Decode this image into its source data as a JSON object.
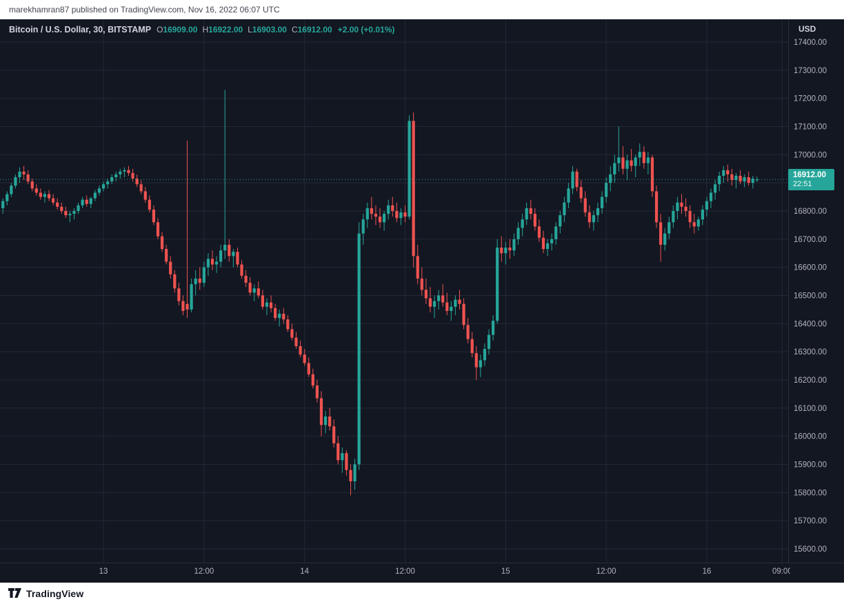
{
  "top_bar": {
    "text": "marekhamran87 published on TradingView.com, Nov 16, 2022 06:07 UTC"
  },
  "legend": {
    "title": "Bitcoin / U.S. Dollar, 30, BITSTAMP",
    "symbol": "Bitcoin / U.S. Dollar",
    "interval": "30",
    "exchange": "BITSTAMP",
    "ohlc": [
      {
        "label": "O",
        "value": "16909.00"
      },
      {
        "label": "H",
        "value": "16922.00"
      },
      {
        "label": "L",
        "value": "16903.00"
      },
      {
        "label": "C",
        "value": "16912.00"
      }
    ],
    "change": "+2.00 (+0.01%)"
  },
  "price_axis": {
    "currency": "USD",
    "ticks": [
      "17400.00",
      "17300.00",
      "17200.00",
      "17100.00",
      "17000.00",
      "16900.00",
      "16800.00",
      "16700.00",
      "16600.00",
      "16500.00",
      "16400.00",
      "16300.00",
      "16200.00",
      "16100.00",
      "16000.00",
      "15900.00",
      "15800.00",
      "15700.00",
      "15600.00"
    ],
    "last_price": {
      "value": "16912.00",
      "countdown": "22:51"
    }
  },
  "time_axis": {
    "labels": [
      {
        "text": "13",
        "index": 24
      },
      {
        "text": "12:00",
        "index": 48
      },
      {
        "text": "14",
        "index": 72
      },
      {
        "text": "12:00",
        "index": 96
      },
      {
        "text": "15",
        "index": 120
      },
      {
        "text": "12:00",
        "index": 144
      },
      {
        "text": "16",
        "index": 168
      },
      {
        "text": "09:00",
        "index": 186
      }
    ]
  },
  "footer": {
    "brand": "TradingView"
  },
  "colors": {
    "up": "#26a69a",
    "down": "#ef5350",
    "bg": "#131722",
    "grid": "#242836",
    "axis_text": "#b2b5be",
    "separator": "#2a2e39",
    "badge_bg": "#26a69a",
    "last_price_line": "#26a69a"
  },
  "chart_data": {
    "type": "candlestick",
    "title": "Bitcoin / U.S. Dollar, 30, BITSTAMP",
    "symbol": "BTC/USD",
    "exchange": "BITSTAMP",
    "interval_minutes": 30,
    "start_time": "2022-11-12 12:00 UTC",
    "end_time": "2022-11-16 06:00 UTC",
    "ylabel": "USD",
    "price_axis_range": [
      15600,
      17400
    ],
    "grid": true,
    "last": {
      "open": 16909,
      "high": 16922,
      "low": 16903,
      "close": 16912,
      "change": 2.0,
      "change_pct": 0.01
    },
    "candles": [
      [
        16810,
        16845,
        16790,
        16835
      ],
      [
        16835,
        16870,
        16820,
        16860
      ],
      [
        16860,
        16900,
        16850,
        16890
      ],
      [
        16890,
        16930,
        16880,
        16920
      ],
      [
        16920,
        16955,
        16900,
        16940
      ],
      [
        16940,
        16960,
        16910,
        16930
      ],
      [
        16930,
        16945,
        16895,
        16905
      ],
      [
        16905,
        16915,
        16870,
        16880
      ],
      [
        16880,
        16895,
        16855,
        16865
      ],
      [
        16865,
        16880,
        16840,
        16850
      ],
      [
        16850,
        16870,
        16830,
        16860
      ],
      [
        16860,
        16875,
        16835,
        16845
      ],
      [
        16845,
        16860,
        16820,
        16830
      ],
      [
        16830,
        16845,
        16805,
        16815
      ],
      [
        16815,
        16830,
        16790,
        16800
      ],
      [
        16800,
        16815,
        16775,
        16785
      ],
      [
        16785,
        16800,
        16760,
        16790
      ],
      [
        16790,
        16810,
        16770,
        16800
      ],
      [
        16800,
        16830,
        16790,
        16820
      ],
      [
        16820,
        16850,
        16810,
        16840
      ],
      [
        16840,
        16855,
        16815,
        16825
      ],
      [
        16825,
        16850,
        16810,
        16845
      ],
      [
        16845,
        16875,
        16835,
        16865
      ],
      [
        16865,
        16890,
        16855,
        16880
      ],
      [
        16880,
        16905,
        16870,
        16895
      ],
      [
        16895,
        16915,
        16880,
        16905
      ],
      [
        16905,
        16930,
        16895,
        16920
      ],
      [
        16920,
        16940,
        16905,
        16930
      ],
      [
        16930,
        16950,
        16915,
        16940
      ],
      [
        16940,
        16955,
        16920,
        16945
      ],
      [
        16945,
        16960,
        16925,
        16935
      ],
      [
        16935,
        16950,
        16905,
        16915
      ],
      [
        16915,
        16930,
        16885,
        16895
      ],
      [
        16895,
        16910,
        16860,
        16870
      ],
      [
        16870,
        16885,
        16830,
        16840
      ],
      [
        16840,
        16855,
        16795,
        16805
      ],
      [
        16805,
        16820,
        16750,
        16760
      ],
      [
        16760,
        16775,
        16700,
        16710
      ],
      [
        16710,
        16725,
        16655,
        16665
      ],
      [
        16665,
        16680,
        16610,
        16620
      ],
      [
        16620,
        16640,
        16560,
        16575
      ],
      [
        16575,
        16590,
        16510,
        16525
      ],
      [
        16525,
        16545,
        16465,
        16480
      ],
      [
        16480,
        16500,
        16430,
        16445
      ],
      [
        16470,
        17050,
        16420,
        16450
      ],
      [
        16450,
        16560,
        16440,
        16540
      ],
      [
        16540,
        16590,
        16500,
        16560
      ],
      [
        16560,
        16600,
        16520,
        16545
      ],
      [
        16545,
        16620,
        16530,
        16600
      ],
      [
        16600,
        16650,
        16570,
        16630
      ],
      [
        16630,
        16660,
        16590,
        16610
      ],
      [
        16610,
        16640,
        16580,
        16620
      ],
      [
        16620,
        16680,
        16600,
        16660
      ],
      [
        16660,
        17230,
        16630,
        16680
      ],
      [
        16680,
        16700,
        16620,
        16640
      ],
      [
        16640,
        16665,
        16600,
        16655
      ],
      [
        16655,
        16670,
        16600,
        16610
      ],
      [
        16610,
        16625,
        16560,
        16570
      ],
      [
        16570,
        16590,
        16530,
        16545
      ],
      [
        16545,
        16565,
        16500,
        16510
      ],
      [
        16510,
        16540,
        16480,
        16525
      ],
      [
        16525,
        16550,
        16490,
        16500
      ],
      [
        16500,
        16520,
        16450,
        16460
      ],
      [
        16460,
        16490,
        16430,
        16475
      ],
      [
        16475,
        16500,
        16440,
        16455
      ],
      [
        16455,
        16470,
        16410,
        16420
      ],
      [
        16420,
        16450,
        16390,
        16435
      ],
      [
        16435,
        16455,
        16400,
        16415
      ],
      [
        16415,
        16430,
        16370,
        16380
      ],
      [
        16380,
        16400,
        16340,
        16350
      ],
      [
        16350,
        16370,
        16310,
        16320
      ],
      [
        16320,
        16340,
        16280,
        16290
      ],
      [
        16290,
        16310,
        16250,
        16260
      ],
      [
        16260,
        16280,
        16210,
        16220
      ],
      [
        16220,
        16240,
        16170,
        16180
      ],
      [
        16180,
        16200,
        16120,
        16135
      ],
      [
        16135,
        16160,
        16000,
        16040
      ],
      [
        16040,
        16090,
        16010,
        16070
      ],
      [
        16070,
        16100,
        16020,
        16035
      ],
      [
        16035,
        16060,
        15960,
        15975
      ],
      [
        15975,
        16000,
        15900,
        15915
      ],
      [
        15915,
        15960,
        15870,
        15940
      ],
      [
        15940,
        15950,
        15860,
        15880
      ],
      [
        15880,
        15900,
        15790,
        15840
      ],
      [
        15840,
        15920,
        15810,
        15900
      ],
      [
        15900,
        16760,
        15880,
        16720
      ],
      [
        16720,
        16790,
        16680,
        16770
      ],
      [
        16770,
        16830,
        16740,
        16810
      ],
      [
        16810,
        16850,
        16770,
        16790
      ],
      [
        16790,
        16820,
        16750,
        16780
      ],
      [
        16780,
        16810,
        16740,
        16760
      ],
      [
        16760,
        16800,
        16730,
        16790
      ],
      [
        16790,
        16840,
        16770,
        16820
      ],
      [
        16820,
        16850,
        16780,
        16800
      ],
      [
        16800,
        16830,
        16760,
        16775
      ],
      [
        16775,
        16810,
        16750,
        16795
      ],
      [
        16795,
        16820,
        16760,
        16780
      ],
      [
        16780,
        17140,
        16770,
        17120
      ],
      [
        17120,
        17150,
        16600,
        16640
      ],
      [
        16640,
        16680,
        16540,
        16560
      ],
      [
        16560,
        16600,
        16500,
        16520
      ],
      [
        16520,
        16560,
        16470,
        16490
      ],
      [
        16490,
        16530,
        16440,
        16460
      ],
      [
        16460,
        16500,
        16420,
        16480
      ],
      [
        16480,
        16520,
        16450,
        16500
      ],
      [
        16500,
        16540,
        16460,
        16475
      ],
      [
        16475,
        16510,
        16430,
        16445
      ],
      [
        16445,
        16480,
        16410,
        16460
      ],
      [
        16460,
        16500,
        16430,
        16485
      ],
      [
        16485,
        16520,
        16450,
        16470
      ],
      [
        16470,
        16490,
        16380,
        16395
      ],
      [
        16395,
        16420,
        16330,
        16345
      ],
      [
        16345,
        16370,
        16280,
        16295
      ],
      [
        16295,
        16320,
        16200,
        16245
      ],
      [
        16245,
        16290,
        16210,
        16270
      ],
      [
        16270,
        16330,
        16250,
        16310
      ],
      [
        16310,
        16380,
        16290,
        16360
      ],
      [
        16360,
        16430,
        16340,
        16410
      ],
      [
        16410,
        16700,
        16400,
        16670
      ],
      [
        16670,
        16710,
        16620,
        16650
      ],
      [
        16650,
        16690,
        16610,
        16670
      ],
      [
        16670,
        16700,
        16630,
        16660
      ],
      [
        16660,
        16720,
        16640,
        16700
      ],
      [
        16700,
        16760,
        16680,
        16740
      ],
      [
        16740,
        16790,
        16710,
        16770
      ],
      [
        16770,
        16830,
        16750,
        16810
      ],
      [
        16810,
        16840,
        16770,
        16790
      ],
      [
        16790,
        16810,
        16730,
        16745
      ],
      [
        16745,
        16770,
        16690,
        16705
      ],
      [
        16705,
        16730,
        16650,
        16665
      ],
      [
        16665,
        16700,
        16640,
        16685
      ],
      [
        16685,
        16720,
        16660,
        16700
      ],
      [
        16700,
        16760,
        16680,
        16745
      ],
      [
        16745,
        16800,
        16720,
        16785
      ],
      [
        16785,
        16850,
        16760,
        16830
      ],
      [
        16830,
        16900,
        16810,
        16880
      ],
      [
        16880,
        16960,
        16860,
        16940
      ],
      [
        16940,
        16950,
        16870,
        16885
      ],
      [
        16885,
        16910,
        16830,
        16845
      ],
      [
        16845,
        16870,
        16780,
        16795
      ],
      [
        16795,
        16820,
        16740,
        16760
      ],
      [
        16760,
        16800,
        16730,
        16785
      ],
      [
        16785,
        16830,
        16760,
        16810
      ],
      [
        16810,
        16870,
        16790,
        16850
      ],
      [
        16850,
        16920,
        16830,
        16900
      ],
      [
        16900,
        16960,
        16870,
        16930
      ],
      [
        16930,
        17000,
        16900,
        16970
      ],
      [
        16970,
        17100,
        16940,
        16990
      ],
      [
        16990,
        17030,
        16930,
        16950
      ],
      [
        16950,
        17000,
        16910,
        16980
      ],
      [
        16980,
        17020,
        16940,
        16960
      ],
      [
        16960,
        17000,
        16920,
        16990
      ],
      [
        16990,
        17040,
        16960,
        17010
      ],
      [
        17010,
        17030,
        16950,
        16970
      ],
      [
        16970,
        17010,
        16930,
        16990
      ],
      [
        16990,
        17000,
        16850,
        16870
      ],
      [
        16870,
        16890,
        16740,
        16760
      ],
      [
        16760,
        16790,
        16620,
        16680
      ],
      [
        16680,
        16740,
        16660,
        16720
      ],
      [
        16720,
        16780,
        16700,
        16760
      ],
      [
        16760,
        16820,
        16740,
        16800
      ],
      [
        16800,
        16850,
        16770,
        16830
      ],
      [
        16830,
        16860,
        16790,
        16815
      ],
      [
        16815,
        16845,
        16780,
        16800
      ],
      [
        16800,
        16820,
        16740,
        16760
      ],
      [
        16760,
        16790,
        16720,
        16745
      ],
      [
        16745,
        16780,
        16730,
        16770
      ],
      [
        16770,
        16820,
        16750,
        16805
      ],
      [
        16805,
        16850,
        16780,
        16835
      ],
      [
        16835,
        16880,
        16810,
        16865
      ],
      [
        16865,
        16910,
        16840,
        16895
      ],
      [
        16895,
        16940,
        16870,
        16925
      ],
      [
        16925,
        16960,
        16900,
        16945
      ],
      [
        16945,
        16965,
        16905,
        16930
      ],
      [
        16930,
        16950,
        16890,
        16910
      ],
      [
        16910,
        16935,
        16880,
        16925
      ],
      [
        16925,
        16945,
        16895,
        16905
      ],
      [
        16905,
        16930,
        16885,
        16920
      ],
      [
        16920,
        16940,
        16890,
        16900
      ],
      [
        16900,
        16925,
        16880,
        16915
      ],
      [
        16909,
        16922,
        16903,
        16912
      ]
    ]
  }
}
